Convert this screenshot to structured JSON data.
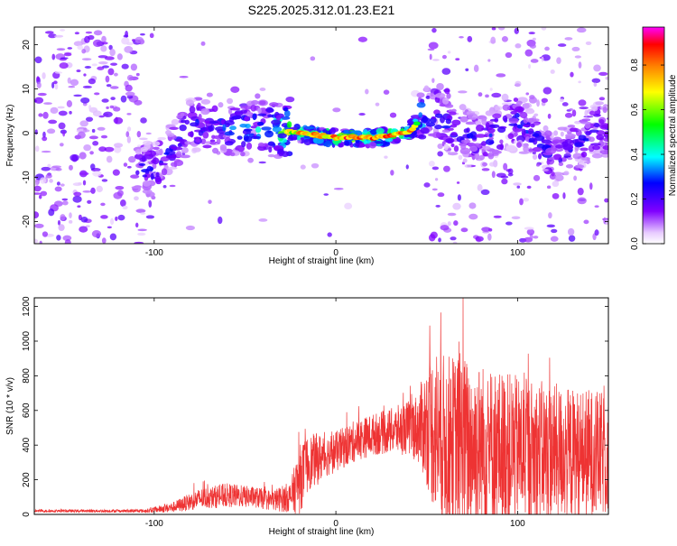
{
  "figure_title": "S225.2025.312.01.23.E21",
  "colorbar": {
    "label": "Normalized spectral amplitude",
    "ticks": [
      "0.0",
      "0.2",
      "0.4",
      "0.6",
      "0.8"
    ],
    "tick_values": [
      0.0,
      0.2,
      0.4,
      0.6,
      0.8
    ],
    "range": [
      0,
      0.97
    ]
  },
  "chart_data": [
    {
      "type": "heatmap",
      "title": "S225.2025.312.01.23.E21",
      "xlabel": "Height of straight line (km)",
      "ylabel": "Frequency (Hz)",
      "xlim": [
        -166,
        150
      ],
      "ylim": [
        -25,
        24
      ],
      "xticks": [
        -100,
        0,
        100
      ],
      "xtick_labels": [
        "-100",
        "0",
        "100"
      ],
      "yticks": [
        -20,
        -10,
        0,
        10,
        20
      ],
      "ytick_labels": [
        "-20",
        "-10",
        "0",
        "10",
        "20"
      ],
      "colormap": "rainbow (violet-blue-cyan-green-yellow-red)",
      "ridge": {
        "description": "high-amplitude dispersive ridge",
        "x": [
          -100,
          -80,
          -60,
          -40,
          -20,
          0,
          20,
          40,
          50,
          60,
          80,
          100,
          120,
          145
        ],
        "y": [
          -8,
          2,
          1,
          1,
          0,
          -1,
          -1,
          0,
          5,
          2,
          -2,
          3,
          -6,
          1
        ],
        "peak_amplitude": [
          0.3,
          0.35,
          0.35,
          0.45,
          0.85,
          0.95,
          0.97,
          0.9,
          0.4,
          0.3,
          0.3,
          0.35,
          0.3,
          0.3
        ]
      }
    },
    {
      "type": "line",
      "xlabel": "Height of straight line (km)",
      "ylabel": "SNR (10 * v/v)",
      "xlim": [
        -166,
        150
      ],
      "ylim": [
        0,
        1250
      ],
      "xticks": [
        -100,
        0,
        100
      ],
      "xtick_labels": [
        "-100",
        "0",
        "100"
      ],
      "yticks": [
        0,
        200,
        400,
        600,
        800,
        1000,
        1200
      ],
      "ytick_labels": [
        "0",
        "200",
        "400",
        "600",
        "800",
        "1000",
        "1200"
      ],
      "color": "#ee3333",
      "series": [
        {
          "name": "SNR",
          "envelope": {
            "x": [
              -166,
              -130,
              -105,
              -90,
              -75,
              -60,
              -45,
              -35,
              -25,
              -20,
              -15,
              -10,
              -5,
              0,
              10,
              20,
              30,
              40,
              45,
              50,
              55,
              60,
              70,
              80,
              90,
              100,
              110,
              120,
              130,
              140,
              150
            ],
            "median": [
              20,
              20,
              20,
              40,
              90,
              110,
              100,
              80,
              100,
              200,
              300,
              320,
              340,
              360,
              420,
              460,
              480,
              500,
              500,
              520,
              480,
              420,
              400,
              400,
              380,
              380,
              360,
              360,
              350,
              350,
              340
            ],
            "spread": [
              8,
              8,
              10,
              30,
              60,
              70,
              60,
              60,
              90,
              200,
              160,
              150,
              120,
              120,
              120,
              120,
              130,
              160,
              200,
              350,
              500,
              500,
              520,
              480,
              460,
              420,
              420,
              400,
              380,
              380,
              350
            ]
          },
          "peak": {
            "x": 70,
            "y": 1250
          }
        }
      ]
    }
  ]
}
